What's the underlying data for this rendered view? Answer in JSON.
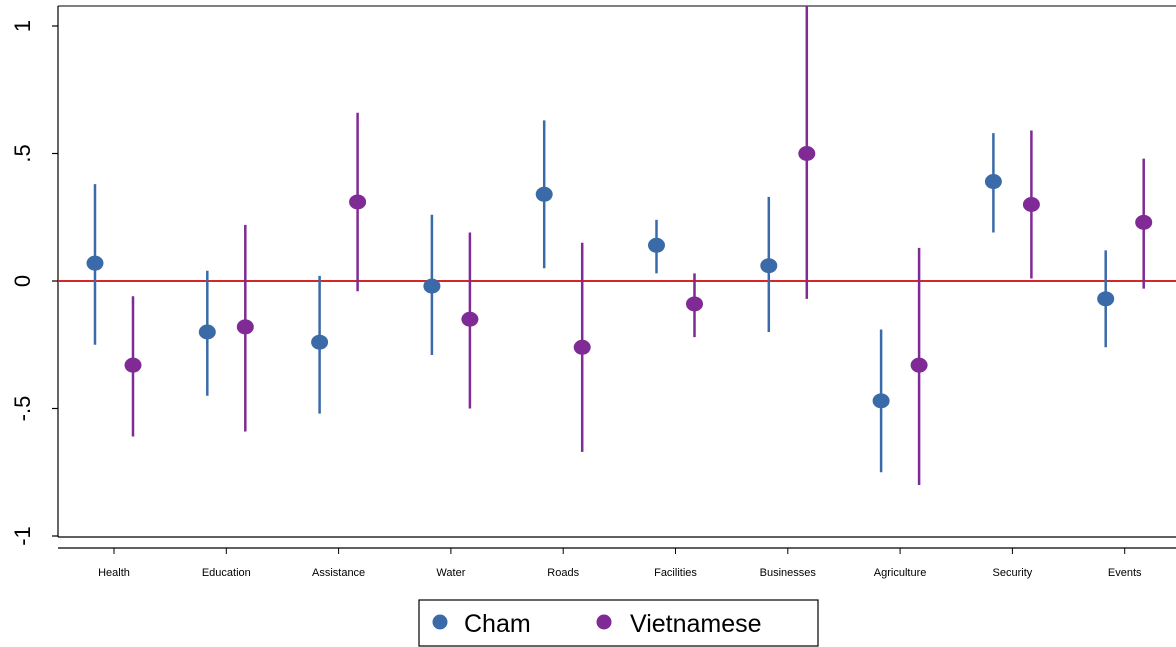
{
  "chart_data": {
    "type": "scatter",
    "title": "",
    "xlabel": "",
    "ylabel": "",
    "ylim": [
      -1,
      1
    ],
    "yticks": [
      "-1",
      "-.5",
      "0",
      ".5",
      "1"
    ],
    "ytick_values": [
      -1,
      -0.5,
      0,
      0.5,
      1
    ],
    "reference_line": {
      "y": 0,
      "color": "#d62728"
    },
    "grid": false,
    "legend_position": "bottom",
    "categories": [
      "Health",
      "Education",
      "Assistance",
      "Water",
      "Roads",
      "Facilities",
      "Businesses",
      "Agriculture",
      "Security",
      "Events"
    ],
    "series": [
      {
        "name": "Cham",
        "color": "#3b6aa8",
        "points": [
          0.07,
          -0.2,
          -0.24,
          -0.02,
          0.34,
          0.14,
          0.06,
          -0.47,
          0.39,
          -0.07
        ],
        "lower": [
          -0.25,
          -0.45,
          -0.52,
          -0.29,
          0.05,
          0.03,
          -0.2,
          -0.75,
          0.19,
          -0.26
        ],
        "upper": [
          0.38,
          0.04,
          0.02,
          0.26,
          0.63,
          0.24,
          0.33,
          -0.19,
          0.58,
          0.12
        ]
      },
      {
        "name": "Vietnamese",
        "color": "#7f2a95",
        "points": [
          -0.33,
          -0.18,
          0.31,
          -0.15,
          -0.26,
          -0.09,
          0.5,
          -0.33,
          0.3,
          0.23
        ],
        "lower": [
          -0.61,
          -0.59,
          -0.04,
          -0.5,
          -0.67,
          -0.22,
          -0.07,
          -0.8,
          0.01,
          -0.03
        ],
        "upper": [
          -0.06,
          0.22,
          0.66,
          0.19,
          0.15,
          0.03,
          1.08,
          0.13,
          0.59,
          0.48
        ]
      }
    ]
  }
}
